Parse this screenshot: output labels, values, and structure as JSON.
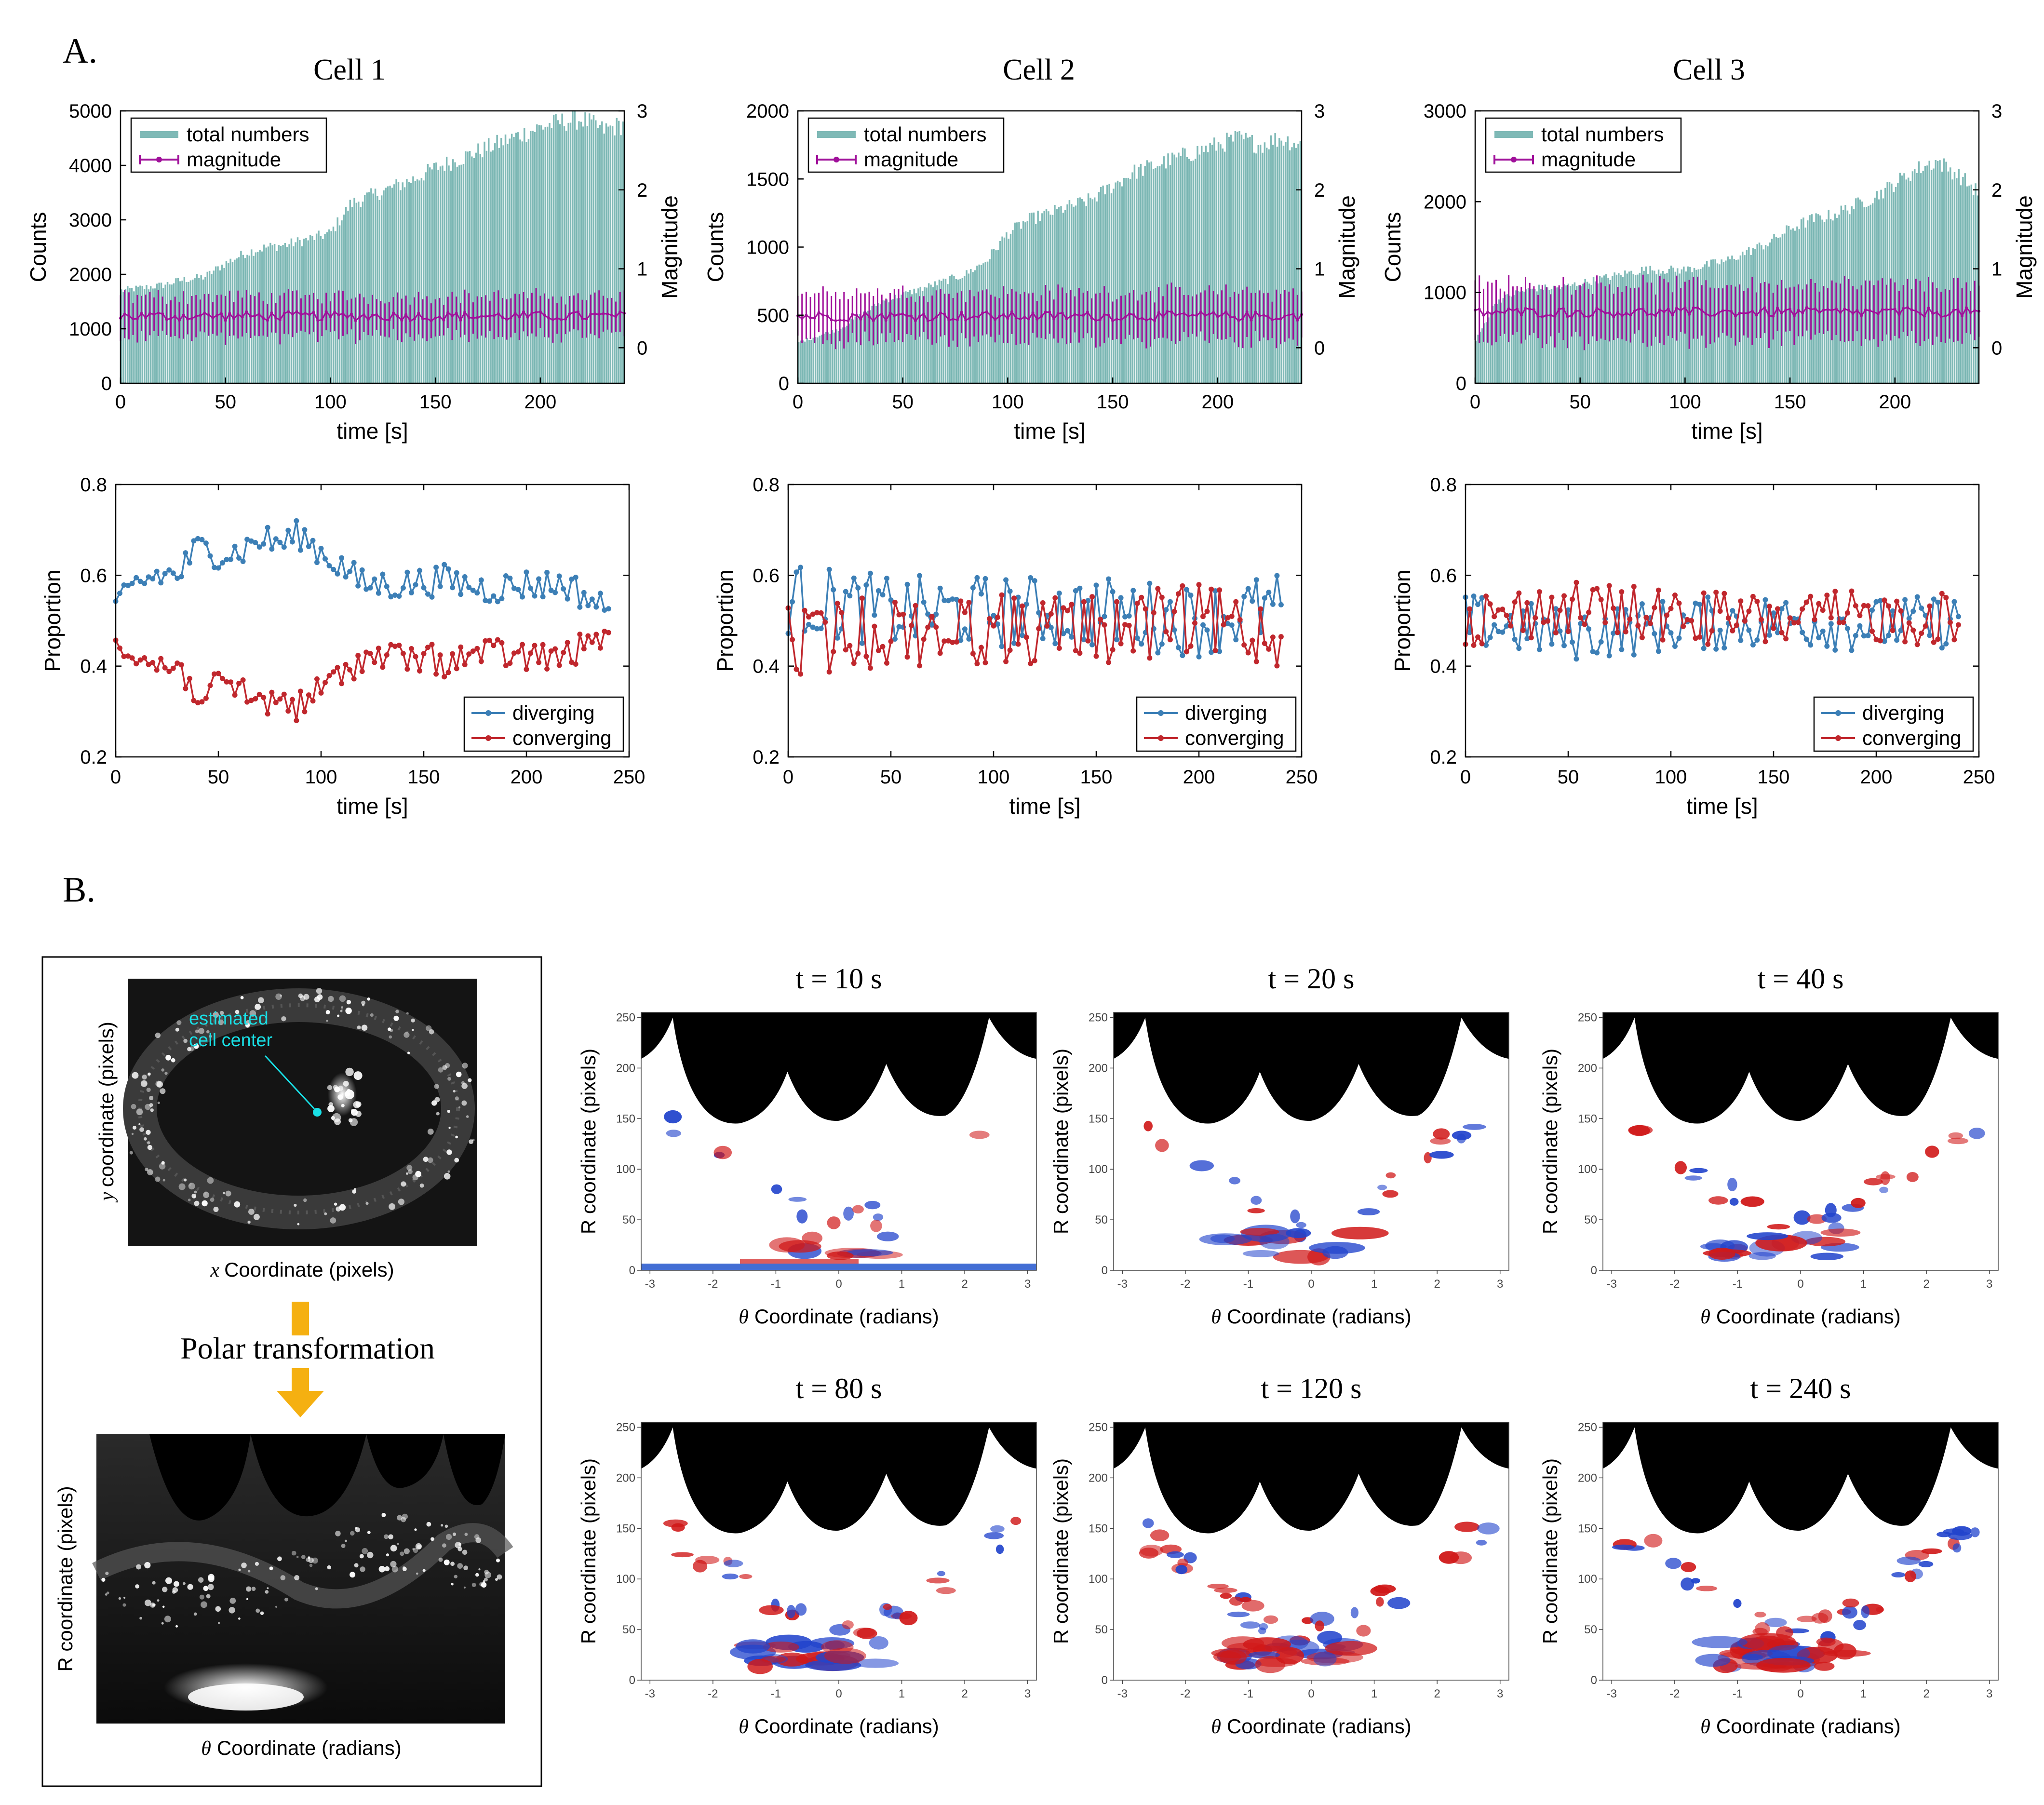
{
  "panel_a": {
    "label": "A.",
    "cells": [
      {
        "title": "Cell 1"
      },
      {
        "title": "Cell 2"
      },
      {
        "title": "Cell 3"
      }
    ]
  },
  "panel_b": {
    "label": "B.",
    "schematic": {
      "x_label": "Coordinate (pixels)",
      "x_symbol": "x",
      "y_label": "coordinate (pixels)",
      "y_symbol": "y",
      "annotation_line1": "estimated",
      "annotation_line2": "cell center",
      "transform_label": "Polar transformation",
      "polar_y_label": "R coordinate (pixels)",
      "polar_x_label": "Coordinate (radians)",
      "polar_x_symbol": "θ"
    },
    "heatmaps": [
      {
        "title": "t = 10 s"
      },
      {
        "title": "t = 20 s"
      },
      {
        "title": "t = 40 s"
      },
      {
        "title": "t = 80 s"
      },
      {
        "title": "t = 120 s"
      },
      {
        "title": "t = 240 s"
      }
    ],
    "heatmap_y_label": "R coordinate (pixels)",
    "heatmap_x_label": "Coordinate (radians)",
    "heatmap_x_symbol": "θ",
    "heatmap_y_ticks": [
      "0",
      "50",
      "100",
      "150",
      "200",
      "250"
    ],
    "heatmap_x_ticks": [
      "-3",
      "-2",
      "-1",
      "0",
      "1",
      "2",
      "3"
    ]
  },
  "chart_data": [
    {
      "type": "bar",
      "panel": "Cell 1 counts",
      "xlabel": "time [s]",
      "ylabel": "Counts",
      "y2label": "Magnitude",
      "xlim": [
        0,
        240
      ],
      "ylim": [
        0,
        5000
      ],
      "y2lim": [
        -0.45,
        3
      ],
      "xticks": [
        "0",
        "50",
        "100",
        "150",
        "200"
      ],
      "yticks": [
        "0",
        "1000",
        "2000",
        "3000",
        "4000",
        "5000"
      ],
      "y2ticks": [
        "0",
        "1",
        "2",
        "3"
      ],
      "legend": [
        "total numbers",
        "magnitude"
      ],
      "legend_position": "top-left",
      "counts_keypoints": [
        [
          0,
          1700
        ],
        [
          10,
          1750
        ],
        [
          20,
          1800
        ],
        [
          30,
          1900
        ],
        [
          40,
          1950
        ],
        [
          50,
          2200
        ],
        [
          60,
          2400
        ],
        [
          70,
          2500
        ],
        [
          80,
          2550
        ],
        [
          90,
          2650
        ],
        [
          100,
          2750
        ],
        [
          110,
          3300
        ],
        [
          120,
          3450
        ],
        [
          130,
          3600
        ],
        [
          140,
          3750
        ],
        [
          150,
          3950
        ],
        [
          160,
          4100
        ],
        [
          170,
          4250
        ],
        [
          180,
          4400
        ],
        [
          190,
          4550
        ],
        [
          200,
          4700
        ],
        [
          210,
          4800
        ],
        [
          220,
          4850
        ],
        [
          230,
          4650
        ],
        [
          240,
          4750
        ]
      ],
      "magnitude_mean": 0.4,
      "magnitude_err": 0.25
    },
    {
      "type": "bar",
      "panel": "Cell 2 counts",
      "xlabel": "time [s]",
      "ylabel": "Counts",
      "y2label": "Magnitude",
      "xlim": [
        0,
        240
      ],
      "ylim": [
        0,
        2000
      ],
      "y2lim": [
        -0.45,
        3
      ],
      "xticks": [
        "0",
        "50",
        "100",
        "150",
        "200"
      ],
      "yticks": [
        "0",
        "500",
        "1000",
        "1500",
        "2000"
      ],
      "y2ticks": [
        "0",
        "1",
        "2",
        "3"
      ],
      "legend": [
        "total numbers",
        "magnitude"
      ],
      "legend_position": "top-left",
      "counts_keypoints": [
        [
          0,
          300
        ],
        [
          10,
          350
        ],
        [
          20,
          400
        ],
        [
          30,
          500
        ],
        [
          40,
          600
        ],
        [
          50,
          650
        ],
        [
          60,
          700
        ],
        [
          70,
          750
        ],
        [
          80,
          800
        ],
        [
          90,
          900
        ],
        [
          100,
          1100
        ],
        [
          110,
          1200
        ],
        [
          120,
          1250
        ],
        [
          130,
          1300
        ],
        [
          140,
          1350
        ],
        [
          150,
          1450
        ],
        [
          160,
          1550
        ],
        [
          170,
          1600
        ],
        [
          180,
          1650
        ],
        [
          190,
          1700
        ],
        [
          200,
          1750
        ],
        [
          210,
          1800
        ],
        [
          220,
          1750
        ],
        [
          230,
          1800
        ],
        [
          240,
          1750
        ]
      ],
      "magnitude_mean": 0.4,
      "magnitude_err": 0.3
    },
    {
      "type": "bar",
      "panel": "Cell 3 counts",
      "xlabel": "time [s]",
      "ylabel": "Counts",
      "y2label": "Magnitude",
      "xlim": [
        0,
        240
      ],
      "ylim": [
        0,
        3000
      ],
      "y2lim": [
        -0.45,
        3
      ],
      "xticks": [
        "0",
        "50",
        "100",
        "150",
        "200"
      ],
      "yticks": [
        "0",
        "1000",
        "2000",
        "3000"
      ],
      "y2ticks": [
        "0",
        "1",
        "2",
        "3"
      ],
      "legend": [
        "total numbers",
        "magnitude"
      ],
      "legend_position": "top-left",
      "counts_keypoints": [
        [
          0,
          450
        ],
        [
          10,
          900
        ],
        [
          20,
          1000
        ],
        [
          30,
          1050
        ],
        [
          40,
          1050
        ],
        [
          50,
          1100
        ],
        [
          60,
          1150
        ],
        [
          70,
          1200
        ],
        [
          80,
          1250
        ],
        [
          90,
          1250
        ],
        [
          100,
          1250
        ],
        [
          110,
          1300
        ],
        [
          120,
          1350
        ],
        [
          130,
          1450
        ],
        [
          140,
          1550
        ],
        [
          150,
          1700
        ],
        [
          160,
          1800
        ],
        [
          170,
          1850
        ],
        [
          180,
          1950
        ],
        [
          190,
          2050
        ],
        [
          200,
          2200
        ],
        [
          210,
          2350
        ],
        [
          220,
          2450
        ],
        [
          230,
          2300
        ],
        [
          240,
          2100
        ]
      ],
      "magnitude_mean": 0.45,
      "magnitude_err": 0.35
    },
    {
      "type": "line",
      "panel": "Cell 1 proportion",
      "xlabel": "time [s]",
      "ylabel": "Proportion",
      "xlim": [
        0,
        250
      ],
      "ylim": [
        0.2,
        0.8
      ],
      "xticks": [
        "0",
        "50",
        "100",
        "150",
        "200",
        "250"
      ],
      "yticks": [
        "0.2",
        "0.4",
        "0.6",
        "0.8"
      ],
      "legend": [
        "diverging",
        "converging"
      ],
      "legend_position": "bottom-right",
      "diverging_keypoints": [
        [
          0,
          0.52
        ],
        [
          10,
          0.58
        ],
        [
          20,
          0.6
        ],
        [
          30,
          0.6
        ],
        [
          40,
          0.66
        ],
        [
          50,
          0.65
        ],
        [
          60,
          0.65
        ],
        [
          70,
          0.68
        ],
        [
          80,
          0.67
        ],
        [
          90,
          0.69
        ],
        [
          100,
          0.65
        ],
        [
          110,
          0.62
        ],
        [
          120,
          0.58
        ],
        [
          140,
          0.58
        ],
        [
          160,
          0.59
        ],
        [
          180,
          0.57
        ],
        [
          200,
          0.58
        ],
        [
          220,
          0.58
        ],
        [
          240,
          0.52
        ]
      ],
      "noise": 0.035
    },
    {
      "type": "line",
      "panel": "Cell 2 proportion",
      "xlabel": "time [s]",
      "ylabel": "Proportion",
      "xlim": [
        0,
        250
      ],
      "ylim": [
        0.2,
        0.8
      ],
      "xticks": [
        "0",
        "50",
        "100",
        "150",
        "200",
        "250"
      ],
      "yticks": [
        "0.2",
        "0.4",
        "0.6",
        "0.8"
      ],
      "legend": [
        "diverging",
        "converging"
      ],
      "legend_position": "bottom-right",
      "diverging_keypoints": [
        [
          0,
          0.55
        ],
        [
          50,
          0.52
        ],
        [
          100,
          0.52
        ],
        [
          150,
          0.52
        ],
        [
          200,
          0.5
        ],
        [
          240,
          0.53
        ]
      ],
      "noise": 0.08
    },
    {
      "type": "line",
      "panel": "Cell 3 proportion",
      "xlabel": "time [s]",
      "ylabel": "Proportion",
      "xlim": [
        0,
        250
      ],
      "ylim": [
        0.2,
        0.8
      ],
      "xticks": [
        "0",
        "50",
        "100",
        "150",
        "200",
        "250"
      ],
      "yticks": [
        "0.2",
        "0.4",
        "0.6",
        "0.8"
      ],
      "legend": [
        "diverging",
        "converging"
      ],
      "legend_position": "bottom-right",
      "diverging_keypoints": [
        [
          0,
          0.5
        ],
        [
          50,
          0.47
        ],
        [
          100,
          0.49
        ],
        [
          150,
          0.5
        ],
        [
          200,
          0.49
        ],
        [
          240,
          0.5
        ]
      ],
      "noise": 0.06
    }
  ],
  "colors": {
    "bar": "#7fb9b6",
    "magnitude": "#a0109a",
    "diverging": "#3c7fb6",
    "converging": "#c0272d",
    "arrow": "#f5b011",
    "annotation": "#19e0e6"
  }
}
